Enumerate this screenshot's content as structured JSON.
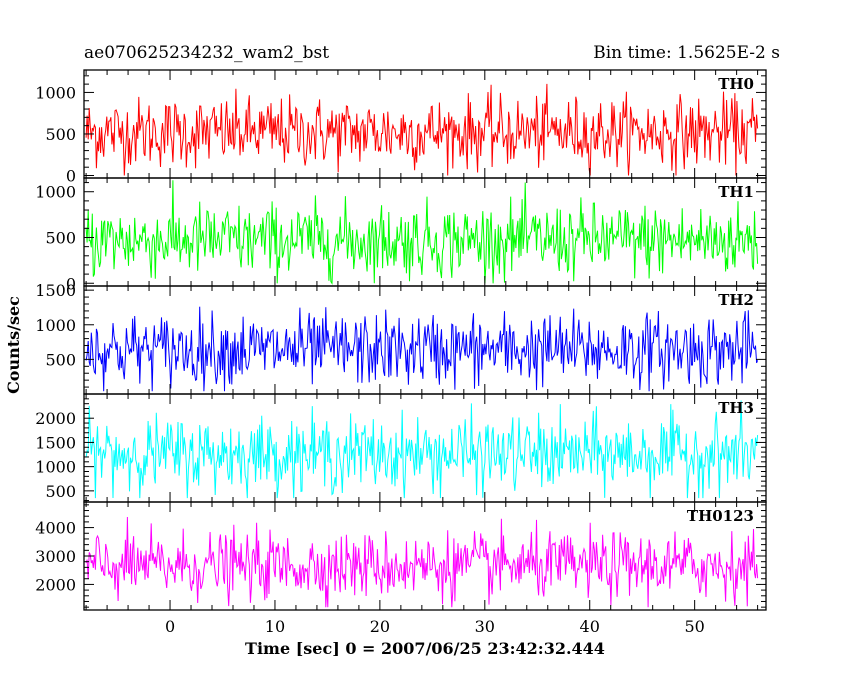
{
  "header": {
    "title": "ae070625234232_wam2_bst",
    "bin_time": "Bin time: 1.5625E-2 s"
  },
  "chart_data": {
    "type": "line",
    "xlabel": "Time [sec] 0 = 2007/06/25 23:42:32.444",
    "ylabel": "Counts/sec",
    "x_range": [
      -8.2,
      56.8
    ],
    "data_x_range": [
      -8,
      56
    ],
    "x_ticks": [
      0,
      10,
      20,
      30,
      40,
      50
    ],
    "x_minor_step": 2,
    "panels": [
      {
        "name": "TH0",
        "color": "#ff0000",
        "ylim": [
          -30,
          1270
        ],
        "yticks": [
          0,
          500,
          1000
        ],
        "minor_step": 100,
        "mean": 520,
        "sigma": 210,
        "min": 0,
        "max": 1240
      },
      {
        "name": "TH1",
        "color": "#00ff00",
        "ylim": [
          -30,
          1150
        ],
        "yticks": [
          0,
          500,
          1000
        ],
        "minor_step": 100,
        "mean": 470,
        "sigma": 200,
        "min": 0,
        "max": 1130
      },
      {
        "name": "TH2",
        "color": "#0000ff",
        "ylim": [
          0,
          1560
        ],
        "yticks": [
          500,
          1000,
          1500
        ],
        "minor_step": 100,
        "mean": 640,
        "sigma": 260,
        "min": 40,
        "max": 1520
      },
      {
        "name": "TH3",
        "color": "#00ffff",
        "ylim": [
          270,
          2500
        ],
        "yticks": [
          500,
          1000,
          1500,
          2000
        ],
        "minor_step": 100,
        "mean": 1260,
        "sigma": 380,
        "min": 350,
        "max": 2450
      },
      {
        "name": "TH0123",
        "color": "#ff00ff",
        "ylim": [
          1100,
          4900
        ],
        "yticks": [
          2000,
          3000,
          4000
        ],
        "minor_step": 200,
        "mean": 2650,
        "sigma": 580,
        "min": 1200,
        "max": 4800
      }
    ]
  }
}
